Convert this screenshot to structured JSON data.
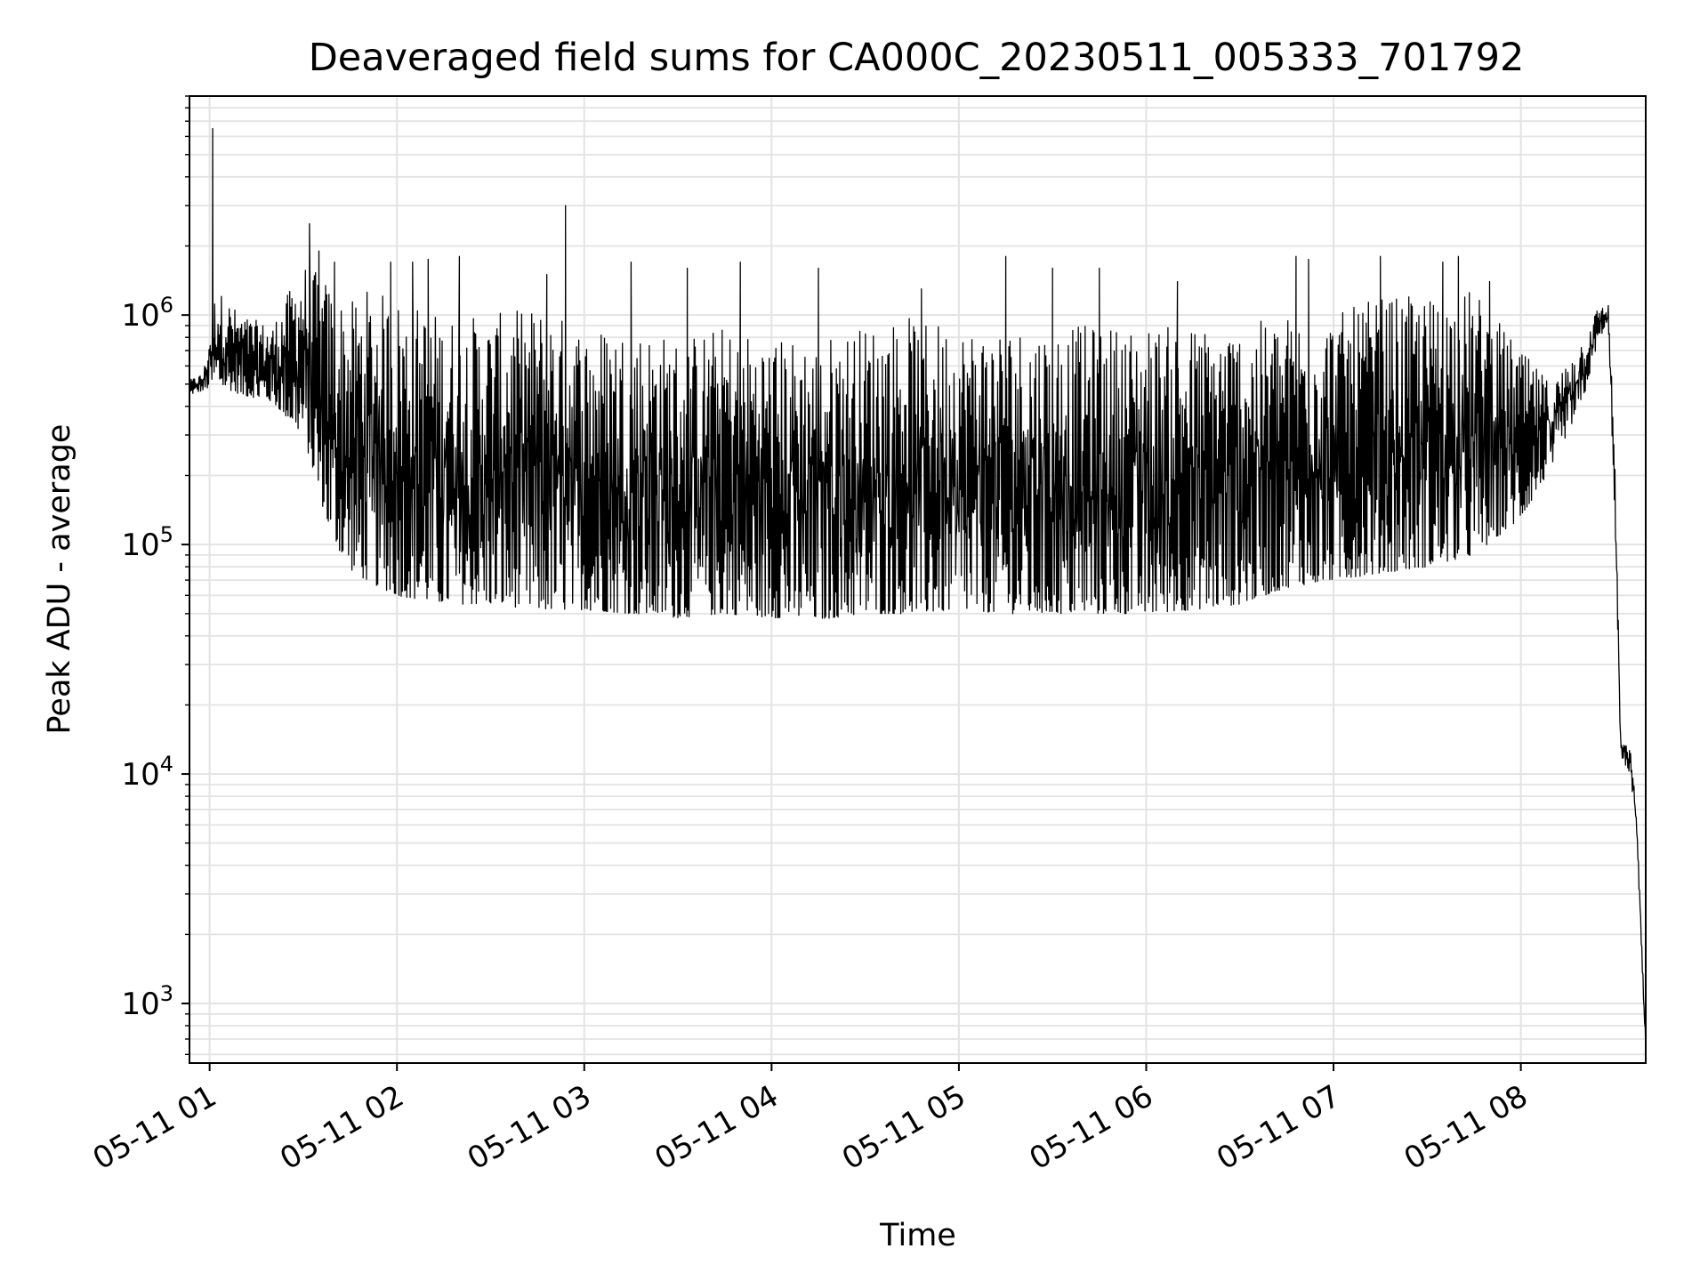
{
  "chart_data": {
    "type": "line",
    "title": "Deaveraged field sums for CA000C_20230511_005333_701792",
    "xlabel": "Time",
    "ylabel": "Peak ADU - average",
    "yscale": "log",
    "ylim": [
      550,
      9000000
    ],
    "xlim": [
      "2023-05-11T00:53:33",
      "2023-05-11T08:40:00"
    ],
    "grid": "major and minor",
    "x_ticks": [
      {
        "label": "05-11 01",
        "time": "2023-05-11T01:00:00"
      },
      {
        "label": "05-11 02",
        "time": "2023-05-11T02:00:00"
      },
      {
        "label": "05-11 03",
        "time": "2023-05-11T03:00:00"
      },
      {
        "label": "05-11 04",
        "time": "2023-05-11T04:00:00"
      },
      {
        "label": "05-11 05",
        "time": "2023-05-11T05:00:00"
      },
      {
        "label": "05-11 06",
        "time": "2023-05-11T06:00:00"
      },
      {
        "label": "05-11 07",
        "time": "2023-05-11T07:00:00"
      },
      {
        "label": "05-11 08",
        "time": "2023-05-11T08:00:00"
      }
    ],
    "y_ticks": [
      {
        "base": "10",
        "exp": "3",
        "value": 1000
      },
      {
        "base": "10",
        "exp": "4",
        "value": 10000
      },
      {
        "base": "10",
        "exp": "5",
        "value": 100000
      },
      {
        "base": "10",
        "exp": "6",
        "value": 1000000
      }
    ],
    "series": [
      {
        "color": "#000000",
        "x": [
          "2023-05-11T00:53:33",
          "2023-05-11T00:58:00",
          "2023-05-11T01:02:00",
          "2023-05-11T01:05:00",
          "2023-05-11T01:10:00",
          "2023-05-11T01:20:00",
          "2023-05-11T01:30:00",
          "2023-05-11T01:38:00",
          "2023-05-11T01:44:00",
          "2023-05-11T01:50:00",
          "2023-05-11T02:00:00",
          "2023-05-11T02:15:00",
          "2023-05-11T02:30:00",
          "2023-05-11T02:45:00",
          "2023-05-11T03:00:00",
          "2023-05-11T03:15:00",
          "2023-05-11T03:30:00",
          "2023-05-11T03:45:00",
          "2023-05-11T04:00:00",
          "2023-05-11T04:15:00",
          "2023-05-11T04:30:00",
          "2023-05-11T04:45:00",
          "2023-05-11T05:00:00",
          "2023-05-11T05:15:00",
          "2023-05-11T05:30:00",
          "2023-05-11T05:45:00",
          "2023-05-11T06:00:00",
          "2023-05-11T06:15:00",
          "2023-05-11T06:30:00",
          "2023-05-11T06:45:00",
          "2023-05-11T07:00:00",
          "2023-05-11T07:15:00",
          "2023-05-11T07:30:00",
          "2023-05-11T07:45:00",
          "2023-05-11T08:00:00",
          "2023-05-11T08:10:00",
          "2023-05-11T08:20:00",
          "2023-05-11T08:25:00",
          "2023-05-11T08:28:00",
          "2023-05-11T08:30:00",
          "2023-05-11T08:32:00",
          "2023-05-11T08:35:00",
          "2023-05-11T08:37:00",
          "2023-05-11T08:40:00"
        ],
        "low": [
          450000,
          470000,
          500000,
          480000,
          450000,
          420000,
          300000,
          120000,
          80000,
          70000,
          60000,
          55000,
          55000,
          52000,
          52000,
          50000,
          48000,
          50000,
          48000,
          47000,
          50000,
          50000,
          52000,
          50000,
          50000,
          50000,
          50000,
          52000,
          55000,
          65000,
          70000,
          75000,
          80000,
          90000,
          130000,
          220000,
          430000,
          800000,
          900000,
          150000,
          12000,
          10000,
          6000,
          600
        ],
        "high": [
          520000,
          560000,
          1300000,
          1200000,
          1000000,
          900000,
          1700000,
          1400000,
          1100000,
          1300000,
          1200000,
          1000000,
          1000000,
          1100000,
          900000,
          900000,
          800000,
          900000,
          800000,
          800000,
          900000,
          1000000,
          900000,
          900000,
          900000,
          900000,
          900000,
          900000,
          900000,
          1000000,
          1000000,
          1200000,
          1200000,
          1300000,
          700000,
          500000,
          800000,
          1100000,
          1100000,
          300000,
          14000,
          13000,
          7000,
          700
        ],
        "peaks": [
          {
            "time": "2023-05-11T01:01:00",
            "value": 6500000
          },
          {
            "time": "2023-05-11T01:32:00",
            "value": 2500000
          },
          {
            "time": "2023-05-11T01:35:00",
            "value": 1900000
          },
          {
            "time": "2023-05-11T01:40:00",
            "value": 1700000
          },
          {
            "time": "2023-05-11T01:58:00",
            "value": 1700000
          },
          {
            "time": "2023-05-11T02:05:00",
            "value": 1700000
          },
          {
            "time": "2023-05-11T02:10:00",
            "value": 1750000
          },
          {
            "time": "2023-05-11T02:20:00",
            "value": 1800000
          },
          {
            "time": "2023-05-11T02:48:00",
            "value": 1500000
          },
          {
            "time": "2023-05-11T02:54:00",
            "value": 3000000
          },
          {
            "time": "2023-05-11T03:15:00",
            "value": 1700000
          },
          {
            "time": "2023-05-11T03:33:00",
            "value": 1600000
          },
          {
            "time": "2023-05-11T03:50:00",
            "value": 1700000
          },
          {
            "time": "2023-05-11T04:15:00",
            "value": 1600000
          },
          {
            "time": "2023-05-11T04:48:00",
            "value": 1300000
          },
          {
            "time": "2023-05-11T05:15:00",
            "value": 1800000
          },
          {
            "time": "2023-05-11T05:30:00",
            "value": 1600000
          },
          {
            "time": "2023-05-11T05:45:00",
            "value": 1600000
          },
          {
            "time": "2023-05-11T06:10:00",
            "value": 1400000
          },
          {
            "time": "2023-05-11T06:48:00",
            "value": 1800000
          },
          {
            "time": "2023-05-11T06:52:00",
            "value": 1750000
          },
          {
            "time": "2023-05-11T07:15:00",
            "value": 1800000
          },
          {
            "time": "2023-05-11T07:35:00",
            "value": 1700000
          },
          {
            "time": "2023-05-11T07:40:00",
            "value": 1800000
          },
          {
            "time": "2023-05-11T07:50:00",
            "value": 1400000
          },
          {
            "time": "2023-05-11T08:28:00",
            "value": 1100000
          }
        ]
      }
    ]
  }
}
